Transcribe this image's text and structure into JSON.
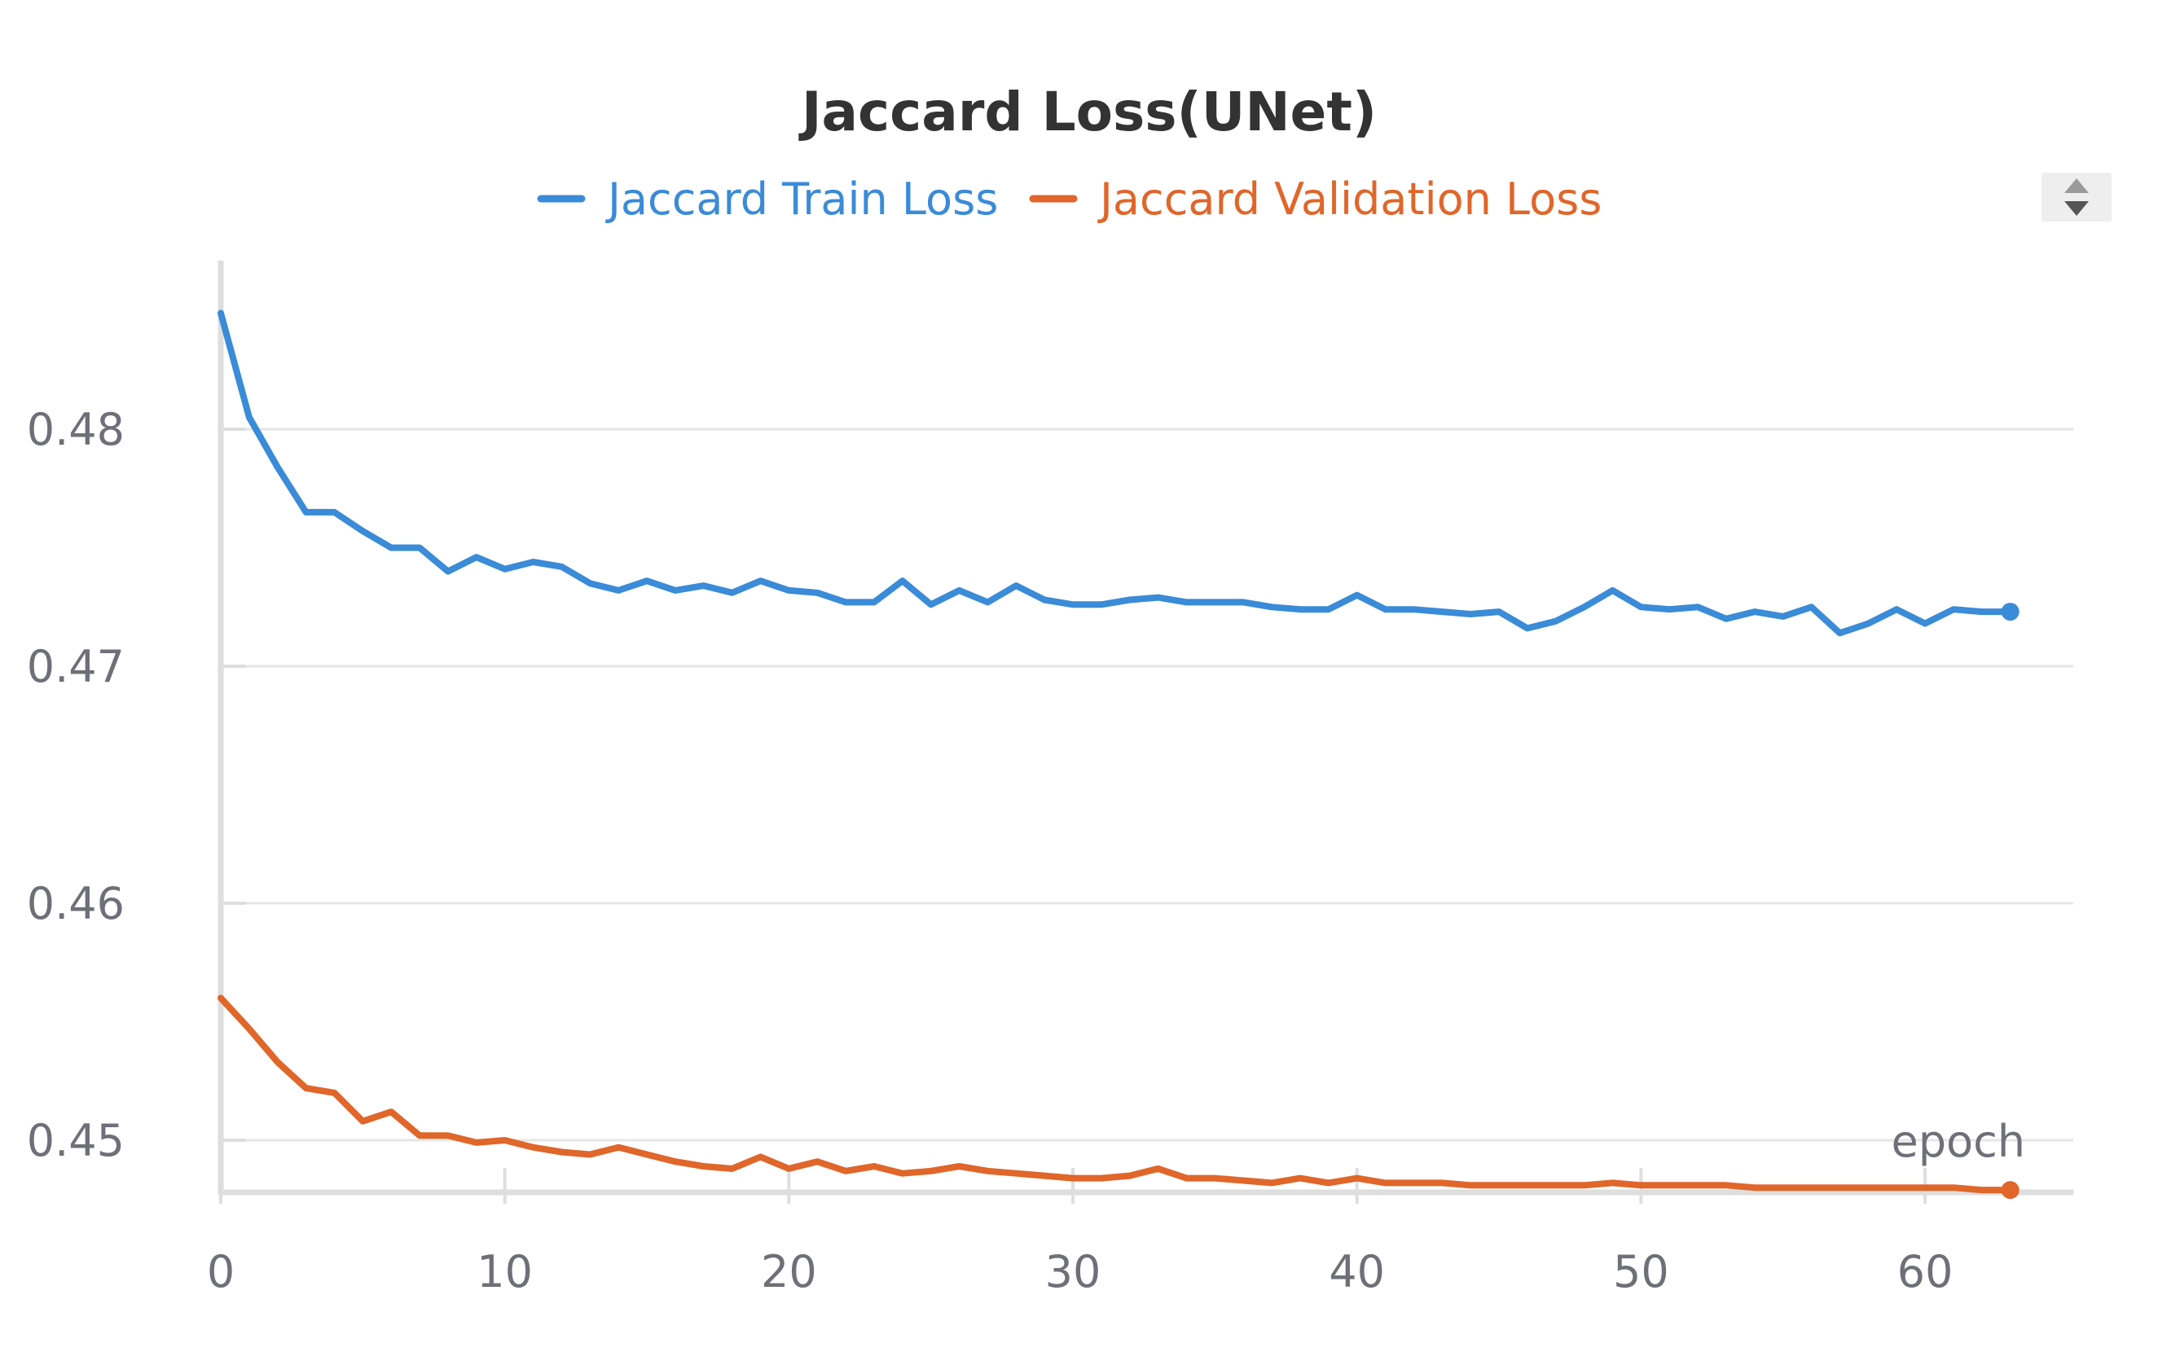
{
  "chart_data": {
    "type": "line",
    "title": "Jaccard Loss(UNet)",
    "xlabel": "epoch",
    "ylabel": "",
    "xlim": [
      0,
      65
    ],
    "ylim": [
      0.448,
      0.4858
    ],
    "x_ticks": [
      0,
      10,
      20,
      30,
      40,
      50,
      60
    ],
    "y_ticks": [
      0.45,
      0.46,
      0.47,
      0.48
    ],
    "y_tick_labels": [
      "0.45",
      "0.46",
      "0.47",
      "0.48"
    ],
    "grid": "horizontal",
    "legend_position": "top-center",
    "series": [
      {
        "name": "Jaccard Train Loss",
        "color": "#3a8bd8",
        "x": [
          0,
          1,
          2,
          3,
          4,
          5,
          6,
          7,
          8,
          9,
          10,
          11,
          12,
          13,
          14,
          15,
          16,
          17,
          18,
          19,
          20,
          21,
          22,
          23,
          24,
          25,
          26,
          27,
          28,
          29,
          30,
          31,
          32,
          33,
          34,
          35,
          36,
          37,
          38,
          39,
          40,
          41,
          42,
          43,
          44,
          45,
          46,
          47,
          48,
          49,
          50,
          51,
          52,
          53,
          54,
          55,
          56,
          57,
          58,
          59,
          60,
          61,
          62,
          63
        ],
        "values": [
          0.4849,
          0.4805,
          0.4784,
          0.4765,
          0.4765,
          0.4757,
          0.475,
          0.475,
          0.474,
          0.4746,
          0.4741,
          0.4744,
          0.4742,
          0.4735,
          0.4732,
          0.4736,
          0.4732,
          0.4734,
          0.4731,
          0.4736,
          0.4732,
          0.4731,
          0.4727,
          0.4727,
          0.4736,
          0.4726,
          0.4732,
          0.4727,
          0.4734,
          0.4728,
          0.4726,
          0.4726,
          0.4728,
          0.4729,
          0.4727,
          0.4727,
          0.4727,
          0.4725,
          0.4724,
          0.4724,
          0.473,
          0.4724,
          0.4724,
          0.4723,
          0.4722,
          0.4723,
          0.4716,
          0.4719,
          0.4725,
          0.4732,
          0.4725,
          0.4724,
          0.4725,
          0.472,
          0.4723,
          0.4721,
          0.4725,
          0.4714,
          0.4718,
          0.4724,
          0.4718,
          0.4724,
          0.4723,
          0.4723
        ]
      },
      {
        "name": "Jaccard Validation Loss",
        "color": "#e0662a",
        "x": [
          0,
          1,
          2,
          3,
          4,
          5,
          6,
          7,
          8,
          9,
          10,
          11,
          12,
          13,
          14,
          15,
          16,
          17,
          18,
          19,
          20,
          21,
          22,
          23,
          24,
          25,
          26,
          27,
          28,
          29,
          30,
          31,
          32,
          33,
          34,
          35,
          36,
          37,
          38,
          39,
          40,
          41,
          42,
          43,
          44,
          45,
          46,
          47,
          48,
          49,
          50,
          51,
          52,
          53,
          54,
          55,
          56,
          57,
          58,
          59,
          60,
          61,
          62,
          63
        ],
        "values": [
          0.456,
          0.4547,
          0.4533,
          0.4522,
          0.452,
          0.4508,
          0.4512,
          0.4502,
          0.4502,
          0.4499,
          0.45,
          0.4497,
          0.4495,
          0.4494,
          0.4497,
          0.4494,
          0.4491,
          0.4489,
          0.4488,
          0.4493,
          0.4488,
          0.4491,
          0.4487,
          0.4489,
          0.4486,
          0.4487,
          0.4489,
          0.4487,
          0.4486,
          0.4485,
          0.4484,
          0.4484,
          0.4485,
          0.4488,
          0.4484,
          0.4484,
          0.4483,
          0.4482,
          0.4484,
          0.4482,
          0.4484,
          0.4482,
          0.4482,
          0.4482,
          0.4481,
          0.4481,
          0.4481,
          0.4481,
          0.4481,
          0.4482,
          0.4481,
          0.4481,
          0.4481,
          0.4481,
          0.448,
          0.448,
          0.448,
          0.448,
          0.448,
          0.448,
          0.448,
          0.448,
          0.4479,
          0.4479
        ]
      }
    ]
  }
}
